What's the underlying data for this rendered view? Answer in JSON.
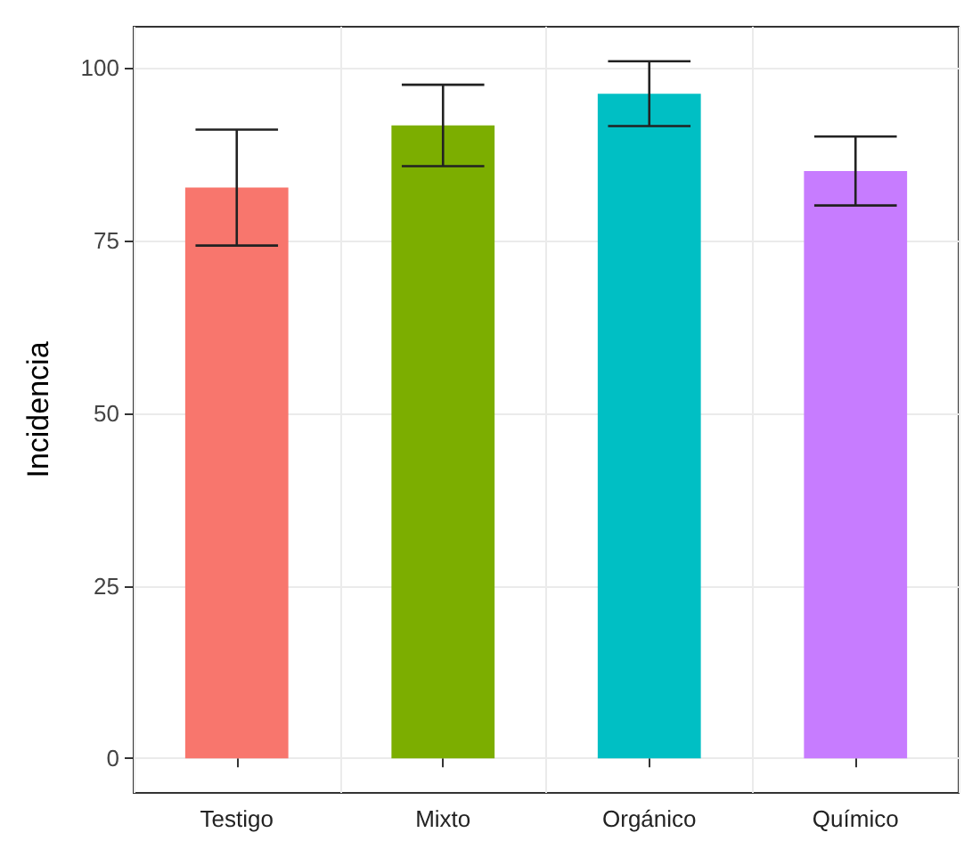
{
  "chart_data": {
    "type": "bar",
    "ylabel": "Incidencia",
    "categories": [
      "Testigo",
      "Mixto",
      "Orgánico",
      "Químico"
    ],
    "values": [
      82.7,
      91.7,
      96.3,
      85.1
    ],
    "colors": [
      "#f8766d",
      "#7cae00",
      "#00bfc4",
      "#c77cff"
    ],
    "errors": [
      8.4,
      5.9,
      4.7,
      5
    ],
    "ylim": [
      -5,
      106
    ],
    "yticks": [
      0,
      25,
      50,
      75,
      100
    ],
    "grid": true
  }
}
